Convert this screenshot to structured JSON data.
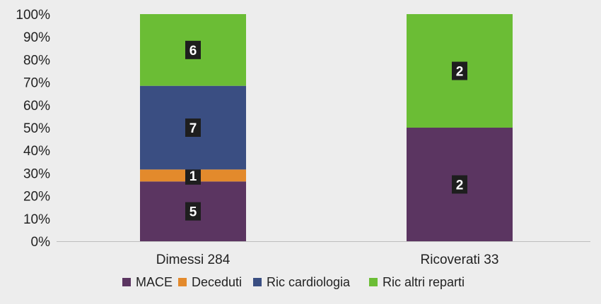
{
  "chart_data": {
    "type": "bar",
    "stacked": "percent",
    "categories": [
      "Dimessi 284",
      "Ricoverati 33"
    ],
    "series": [
      {
        "name": "MACE",
        "color": "#5b3561",
        "values": [
          5,
          2
        ]
      },
      {
        "name": "Deceduti",
        "color": "#e38a2c",
        "values": [
          1,
          0
        ]
      },
      {
        "name": "Ric cardiologia",
        "color": "#3a4e82",
        "values": [
          7,
          0
        ]
      },
      {
        "name": "Ric altri reparti",
        "color": "#6bbd35",
        "values": [
          6,
          2
        ]
      }
    ],
    "ytick_labels": [
      "0%",
      "10%",
      "20%",
      "30%",
      "40%",
      "50%",
      "60%",
      "70%",
      "80%",
      "90%",
      "100%"
    ],
    "ylim": [
      0,
      100
    ],
    "legend_position": "bottom",
    "label_box_color": "#1e1e1e"
  }
}
